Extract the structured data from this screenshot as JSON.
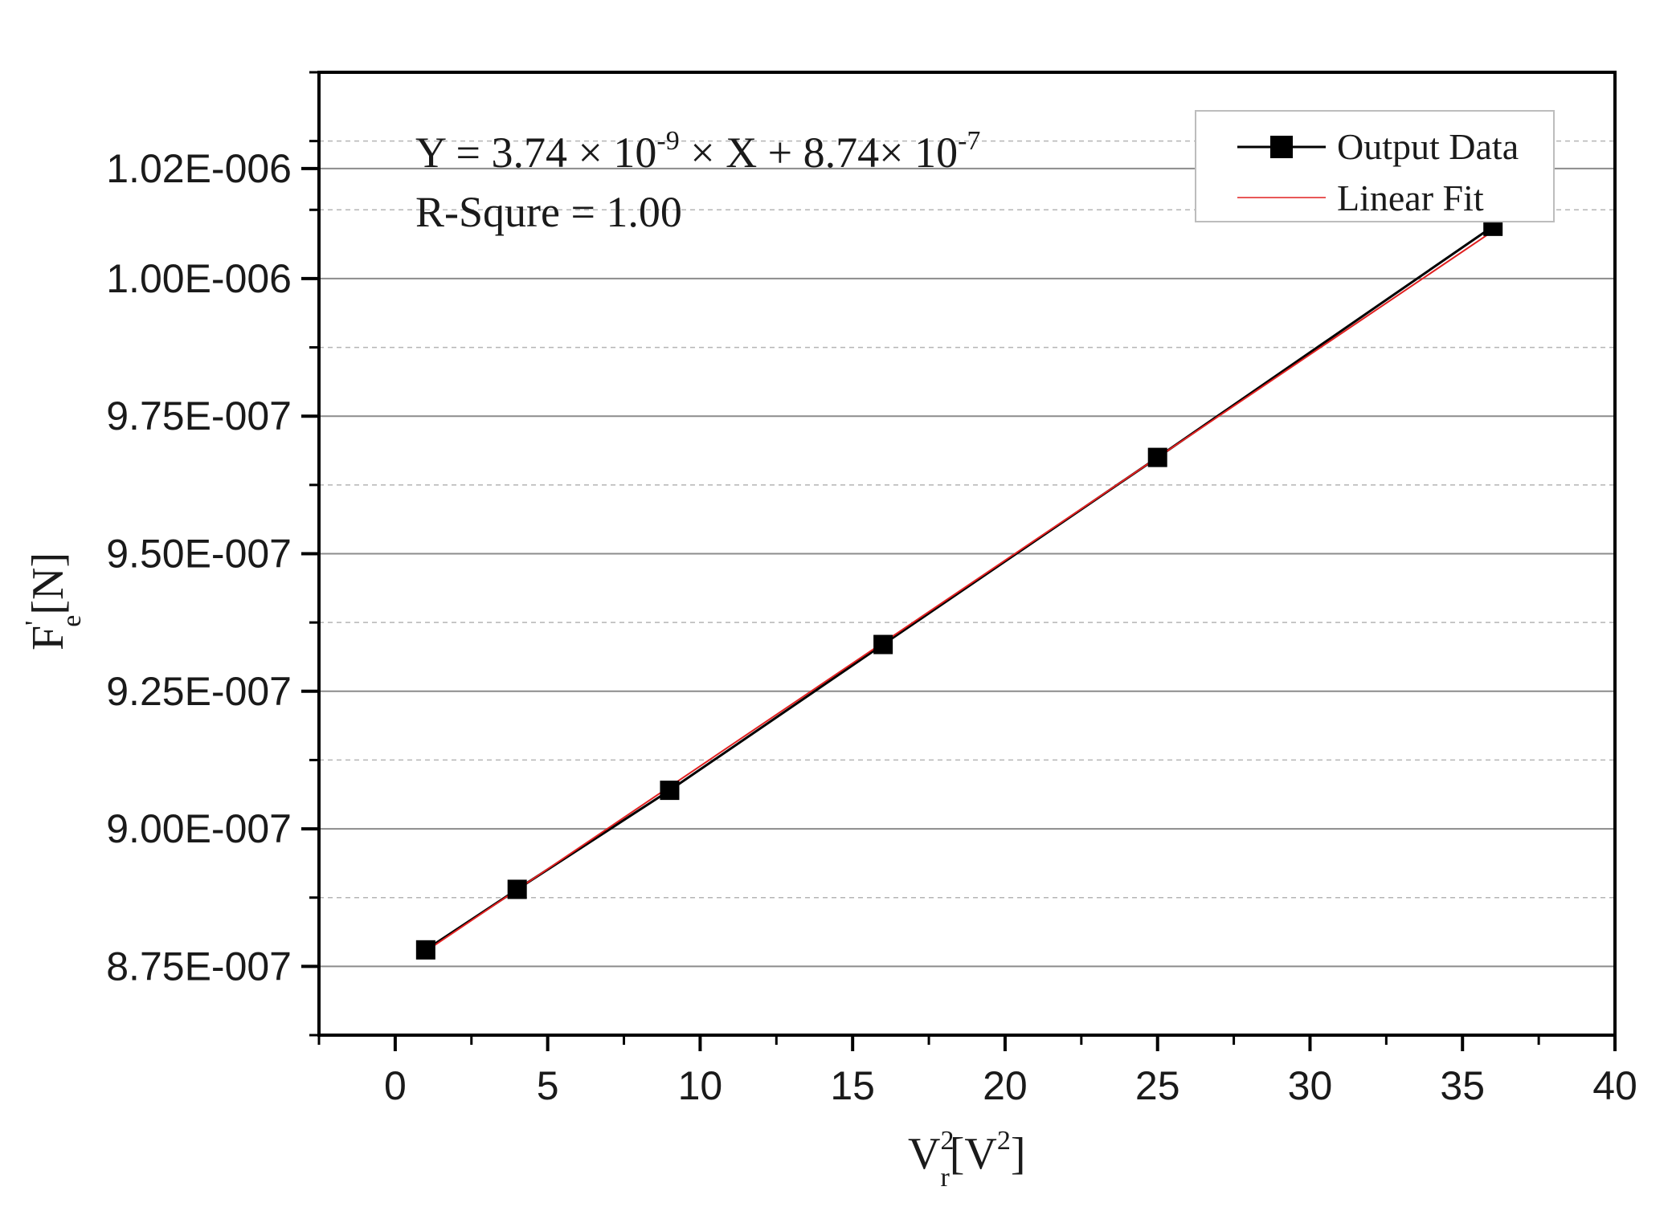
{
  "chart_data": {
    "type": "scatter",
    "xlim": [
      -2.5,
      40
    ],
    "ylim": [
      8.625e-07,
      1.0375e-06
    ],
    "xticks": [
      0,
      5,
      10,
      15,
      20,
      25,
      30,
      35,
      40
    ],
    "xtick_labels": [
      "0",
      "5",
      "10",
      "15",
      "20",
      "25",
      "30",
      "35",
      "40"
    ],
    "yticks": [
      8.75e-07,
      9e-07,
      9.25e-07,
      9.5e-07,
      9.75e-07,
      1e-06,
      1.02e-06
    ],
    "ytick_labels": [
      "8.75E-007",
      "9.00E-007",
      "9.25E-007",
      "9.50E-007",
      "9.75E-007",
      "1.00E-006",
      "1.02E-006"
    ],
    "grid": true,
    "xlabel": {
      "base": "V",
      "sup": "2",
      "sub": "r",
      "unit_open": "[V",
      "unit_sup": "2",
      "unit_close": "]"
    },
    "ylabel": {
      "base": "F",
      "sup": "'",
      "sub": "e",
      "unit": "[N]"
    },
    "annotation": {
      "equation_prefix": "Y = 3.74 × 10",
      "equation_exp1": "-9",
      "equation_middle": " × X + 8.74× 10",
      "equation_exp2": "-7",
      "r_squared": "R-Squre = 1.00"
    },
    "legend_position": "top-right",
    "series": [
      {
        "name": "Output Data",
        "color": "#000000",
        "marker": "square",
        "x": [
          1,
          4,
          9,
          16,
          25,
          36
        ],
        "y": [
          8.78e-07,
          8.89e-07,
          9.07e-07,
          9.335e-07,
          9.675e-07,
          1.0095e-06
        ]
      },
      {
        "name": "Linear Fit",
        "color": "#e02020",
        "marker": "none",
        "x": [
          1,
          36
        ],
        "y": [
          8.7774e-07,
          1.00864e-06
        ]
      }
    ]
  }
}
